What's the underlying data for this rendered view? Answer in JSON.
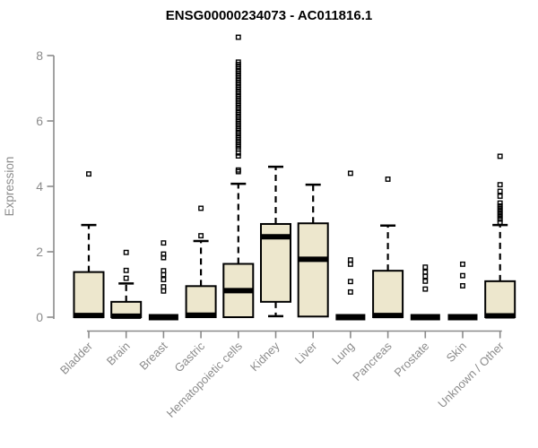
{
  "chart_data": {
    "type": "boxplot",
    "title": "ENSG00000234073 - AC011816.1",
    "ylabel": "Expression",
    "xlabel": "",
    "ylim": [
      0,
      8.6
    ],
    "yticks": [
      0,
      2,
      4,
      6,
      8
    ],
    "grid": false,
    "legend": "none",
    "colors": {
      "background": "#FFFFFF",
      "box_fill": "#EDE7CD",
      "box_stroke": "#000000",
      "median": "#000000",
      "axis": "#8A8A8A",
      "label_text": "#8C8C8C",
      "title_text": "#000000"
    },
    "categories": [
      "Bladder",
      "Brain",
      "Breast",
      "Gastric",
      "Hematopoietic cells",
      "Kidney",
      "Liver",
      "Lung",
      "Pancreas",
      "Prostate",
      "Skin",
      "Unknown / Other"
    ],
    "boxes": [
      {
        "category": "Bladder",
        "q1": 0,
        "median": 0.05,
        "q3": 1.38,
        "whisker_low": 0,
        "whisker_high": 2.82,
        "outliers": [
          4.38
        ]
      },
      {
        "category": "Brain",
        "q1": 0,
        "median": 0.03,
        "q3": 0.47,
        "whisker_low": 0,
        "whisker_high": 1.03,
        "outliers": [
          1.98,
          1.43,
          1.19
        ]
      },
      {
        "category": "Breast",
        "q1": 0,
        "median": 0,
        "q3": 0,
        "whisker_low": 0,
        "whisker_high": 0,
        "outliers": [
          2.27,
          1.93,
          1.82,
          1.42,
          1.3,
          1.15,
          0.93,
          0.8
        ]
      },
      {
        "category": "Gastric",
        "q1": 0,
        "median": 0.06,
        "q3": 0.95,
        "whisker_low": 0,
        "whisker_high": 2.33,
        "outliers": [
          3.33,
          2.49
        ]
      },
      {
        "category": "Hematopoietic cells",
        "q1": 0,
        "median": 0.81,
        "q3": 1.63,
        "whisker_low": 0,
        "whisker_high": 4.08,
        "outliers": [
          8.56,
          7.8,
          7.73,
          7.66,
          7.59,
          7.52,
          7.45,
          7.38,
          7.31,
          7.24,
          7.17,
          7.1,
          7.03,
          6.96,
          6.89,
          6.82,
          6.75,
          6.68,
          6.61,
          6.54,
          6.47,
          6.4,
          6.33,
          6.26,
          6.19,
          6.12,
          6.05,
          5.98,
          5.91,
          5.84,
          5.77,
          5.7,
          5.63,
          5.56,
          5.49,
          5.42,
          5.35,
          5.28,
          5.21,
          5.14,
          5.02,
          4.93,
          4.5,
          4.45
        ]
      },
      {
        "category": "Kidney",
        "q1": 0.47,
        "median": 2.46,
        "q3": 2.85,
        "whisker_low": 0.03,
        "whisker_high": 4.6,
        "outliers": []
      },
      {
        "category": "Liver",
        "q1": 0.02,
        "median": 1.77,
        "q3": 2.87,
        "whisker_low": 0.02,
        "whisker_high": 4.05,
        "outliers": []
      },
      {
        "category": "Lung",
        "q1": 0,
        "median": 0,
        "q3": 0,
        "whisker_low": 0,
        "whisker_high": 0,
        "outliers": [
          4.4,
          1.75,
          1.62,
          1.09,
          0.77
        ]
      },
      {
        "category": "Pancreas",
        "q1": 0,
        "median": 0.05,
        "q3": 1.42,
        "whisker_low": 0,
        "whisker_high": 2.8,
        "outliers": [
          4.22
        ]
      },
      {
        "category": "Prostate",
        "q1": 0,
        "median": 0,
        "q3": 0,
        "whisker_low": 0,
        "whisker_high": 0,
        "outliers": [
          1.53,
          1.38,
          1.25,
          1.1,
          0.86
        ]
      },
      {
        "category": "Skin",
        "q1": 0,
        "median": 0,
        "q3": 0,
        "whisker_low": 0,
        "whisker_high": 0,
        "outliers": [
          1.62,
          1.27,
          0.96
        ]
      },
      {
        "category": "Unknown / Other",
        "q1": 0,
        "median": 0.04,
        "q3": 1.1,
        "whisker_low": 0,
        "whisker_high": 2.82,
        "outliers": [
          4.92,
          4.05,
          3.85,
          3.7,
          3.49,
          3.4,
          3.32,
          3.24,
          3.16,
          3.08,
          3.0,
          2.9
        ]
      }
    ]
  }
}
